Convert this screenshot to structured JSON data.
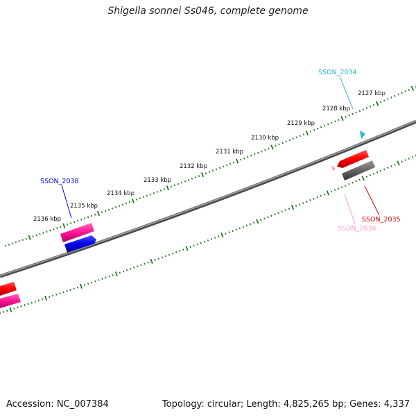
{
  "title": "Shigella sonnei Ss046, complete genome",
  "footer": {
    "accession": "Accession: NC_007384",
    "summary": "Topology: circular; Length: 4,825,265 bp; Genes: 4,337"
  },
  "ticks": [
    "2127 kbp",
    "2128 kbp",
    "2129 kbp",
    "2130 kbp",
    "2131 kbp",
    "2132 kbp",
    "2133 kbp",
    "2134 kbp",
    "2135 kbp",
    "2136 kbp"
  ],
  "genes": {
    "g2034": "SSON_2034",
    "g2035": "SSON_2035",
    "g2036": "SSON_2036",
    "g2038": "SSON_2038"
  },
  "colors": {
    "backbone": "#7a7a7a",
    "tick": "#1a7a1a",
    "red": "#ff0000",
    "pink": "#ff1493",
    "blue": "#0000ee",
    "gray": "#555555",
    "cyan": "#29b6d8",
    "lightpink": "#ff99c8"
  }
}
